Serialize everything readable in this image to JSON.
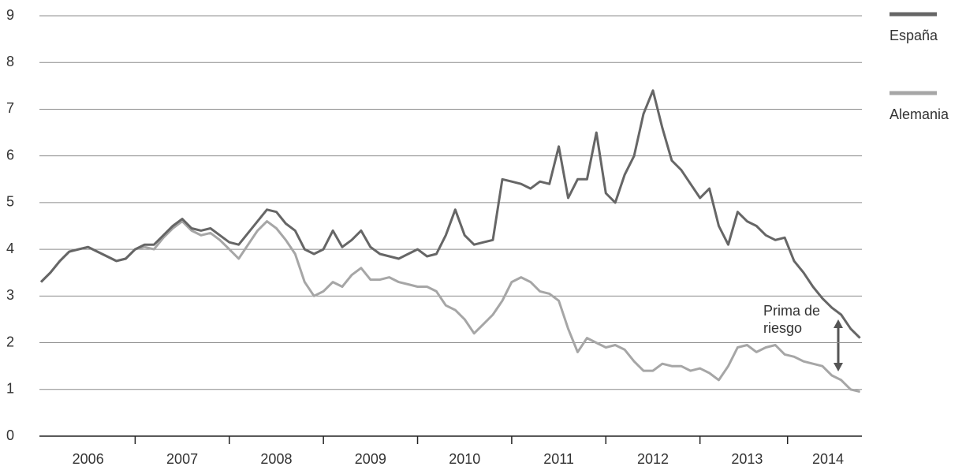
{
  "chart_data": {
    "type": "line",
    "x": [
      2006.0,
      2006.1,
      2006.2,
      2006.3,
      2006.4,
      2006.5,
      2006.6,
      2006.7,
      2006.8,
      2006.9,
      2007.0,
      2007.1,
      2007.2,
      2007.3,
      2007.4,
      2007.5,
      2007.6,
      2007.7,
      2007.8,
      2007.9,
      2008.0,
      2008.1,
      2008.2,
      2008.3,
      2008.4,
      2008.5,
      2008.6,
      2008.7,
      2008.8,
      2008.9,
      2009.0,
      2009.1,
      2009.2,
      2009.3,
      2009.4,
      2009.5,
      2009.6,
      2009.7,
      2009.8,
      2009.9,
      2010.0,
      2010.1,
      2010.2,
      2010.3,
      2010.4,
      2010.5,
      2010.6,
      2010.7,
      2010.8,
      2010.9,
      2011.0,
      2011.1,
      2011.2,
      2011.3,
      2011.4,
      2011.5,
      2011.6,
      2011.7,
      2011.8,
      2011.9,
      2012.0,
      2012.1,
      2012.2,
      2012.3,
      2012.4,
      2012.5,
      2012.6,
      2012.7,
      2012.8,
      2012.9,
      2013.0,
      2013.1,
      2013.2,
      2013.3,
      2013.4,
      2013.5,
      2013.6,
      2013.7,
      2013.8,
      2013.9,
      2014.0,
      2014.1,
      2014.2,
      2014.3,
      2014.4,
      2014.5,
      2014.6,
      2014.7
    ],
    "series": [
      {
        "name": "España",
        "color": "#666666",
        "values": [
          3.3,
          3.5,
          3.75,
          3.95,
          4.0,
          4.05,
          3.95,
          3.85,
          3.75,
          3.8,
          4.0,
          4.1,
          4.1,
          4.3,
          4.5,
          4.65,
          4.45,
          4.4,
          4.45,
          4.3,
          4.15,
          4.1,
          4.35,
          4.6,
          4.85,
          4.8,
          4.55,
          4.4,
          4.0,
          3.9,
          4.0,
          4.4,
          4.05,
          4.2,
          4.4,
          4.05,
          3.9,
          3.85,
          3.8,
          3.9,
          4.0,
          3.85,
          3.9,
          4.3,
          4.85,
          4.3,
          4.1,
          4.15,
          4.2,
          5.5,
          5.45,
          5.4,
          5.3,
          5.45,
          5.4,
          6.2,
          5.1,
          5.5,
          5.5,
          6.5,
          5.2,
          5.0,
          5.6,
          6.0,
          6.9,
          7.4,
          6.6,
          5.9,
          5.7,
          5.4,
          5.1,
          5.3,
          4.5,
          4.1,
          4.8,
          4.6,
          4.5,
          4.3,
          4.2,
          4.25,
          3.75,
          3.5,
          3.2,
          2.95,
          2.75,
          2.6,
          2.3,
          2.1
        ]
      },
      {
        "name": "Alemania",
        "color": "#a6a6a6",
        "values": [
          3.3,
          3.5,
          3.75,
          3.95,
          4.0,
          4.05,
          3.95,
          3.85,
          3.75,
          3.8,
          4.0,
          4.05,
          4.0,
          4.25,
          4.45,
          4.6,
          4.4,
          4.3,
          4.35,
          4.2,
          4.0,
          3.8,
          4.1,
          4.4,
          4.6,
          4.45,
          4.2,
          3.9,
          3.3,
          3.0,
          3.1,
          3.3,
          3.2,
          3.45,
          3.6,
          3.35,
          3.35,
          3.4,
          3.3,
          3.25,
          3.2,
          3.2,
          3.1,
          2.8,
          2.7,
          2.5,
          2.2,
          2.4,
          2.6,
          2.9,
          3.3,
          3.4,
          3.3,
          3.1,
          3.05,
          2.9,
          2.3,
          1.8,
          2.1,
          2.0,
          1.9,
          1.95,
          1.85,
          1.6,
          1.4,
          1.4,
          1.55,
          1.5,
          1.5,
          1.4,
          1.45,
          1.35,
          1.2,
          1.5,
          1.9,
          1.95,
          1.8,
          1.9,
          1.95,
          1.75,
          1.7,
          1.6,
          1.55,
          1.5,
          1.3,
          1.2,
          1.0,
          0.95
        ]
      }
    ],
    "xlim": [
      2006.0,
      2014.72
    ],
    "xticks": [
      {
        "value": 2006.5,
        "label": "2006"
      },
      {
        "value": 2007.5,
        "label": "2007"
      },
      {
        "value": 2008.5,
        "label": "2008"
      },
      {
        "value": 2009.5,
        "label": "2009"
      },
      {
        "value": 2010.5,
        "label": "2010"
      },
      {
        "value": 2011.5,
        "label": "2011"
      },
      {
        "value": 2012.5,
        "label": "2012"
      },
      {
        "value": 2013.5,
        "label": "2013"
      },
      {
        "value": 2014.36,
        "label": "2014"
      }
    ],
    "ylim": [
      0,
      9
    ],
    "yticks": [
      0,
      1,
      2,
      3,
      4,
      5,
      6,
      7,
      8,
      9
    ],
    "grid": true,
    "legend": "right",
    "annotation": [
      "Prima de",
      "riesgo"
    ]
  }
}
